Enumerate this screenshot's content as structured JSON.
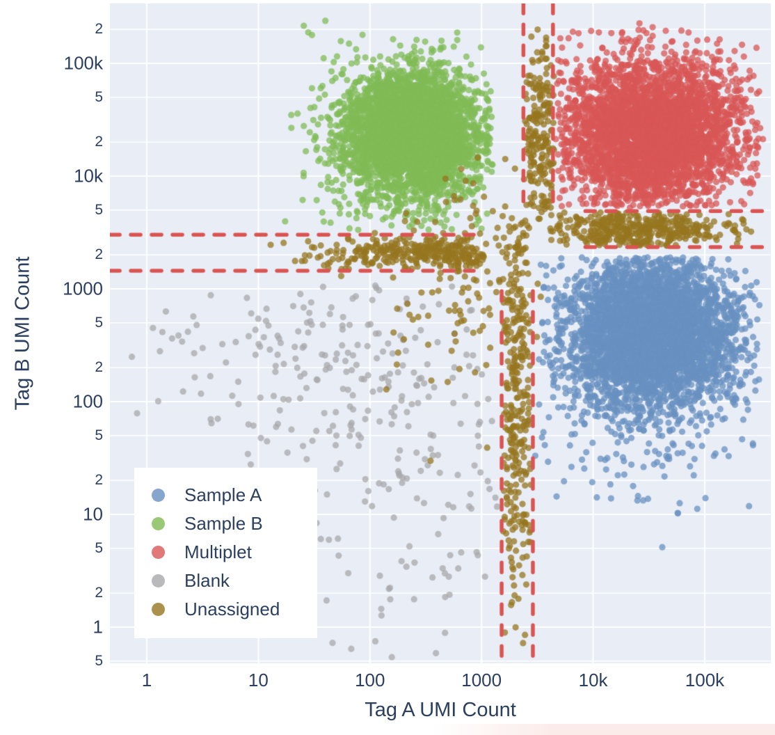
{
  "figure": {
    "background": "#ffffff",
    "plot_background": "#e8edf6",
    "grid_color": "#ffffff",
    "text_color": "#2b3f5e",
    "threshold_color": "#da5552"
  },
  "chart_data": {
    "type": "scatter",
    "title": "",
    "xlabel": "Tag A UMI Count",
    "ylabel": "Tag B UMI Count",
    "x_scale": "log",
    "y_scale": "log",
    "x_range_log": [
      -0.33,
      5.59
    ],
    "y_range_log": [
      -0.32,
      5.53
    ],
    "grid": true,
    "legend_position": "bottom-left",
    "marker": {
      "radius": 4.6,
      "opacity": 0.75
    },
    "x_ticks": [
      {
        "label": "1",
        "log": 0,
        "major": true
      },
      {
        "label": "10",
        "log": 1,
        "major": true
      },
      {
        "label": "100",
        "log": 2,
        "major": true
      },
      {
        "label": "1000",
        "log": 3,
        "major": true
      },
      {
        "label": "10k",
        "log": 4,
        "major": true
      },
      {
        "label": "100k",
        "log": 5,
        "major": true
      }
    ],
    "y_ticks": [
      {
        "label": "2",
        "log": 5.301,
        "major": false
      },
      {
        "label": "100k",
        "log": 5.0,
        "major": true
      },
      {
        "label": "5",
        "log": 4.699,
        "major": false
      },
      {
        "label": "2",
        "log": 4.301,
        "major": false
      },
      {
        "label": "10k",
        "log": 4.0,
        "major": true
      },
      {
        "label": "5",
        "log": 3.699,
        "major": false
      },
      {
        "label": "2",
        "log": 3.301,
        "major": false
      },
      {
        "label": "1000",
        "log": 3.0,
        "major": true
      },
      {
        "label": "5",
        "log": 2.699,
        "major": false
      },
      {
        "label": "2",
        "log": 2.301,
        "major": false
      },
      {
        "label": "100",
        "log": 2.0,
        "major": true
      },
      {
        "label": "5",
        "log": 1.699,
        "major": false
      },
      {
        "label": "2",
        "log": 1.301,
        "major": false
      },
      {
        "label": "10",
        "log": 1.0,
        "major": true
      },
      {
        "label": "5",
        "log": 0.699,
        "major": false
      },
      {
        "label": "2",
        "log": 0.301,
        "major": false
      },
      {
        "label": "1",
        "log": 0.0,
        "major": true
      },
      {
        "label": "5",
        "log": -0.301,
        "major": false
      }
    ],
    "x_gridlines_log": [
      0,
      1,
      2,
      3,
      4,
      5
    ],
    "series": [
      {
        "name": "Sample A",
        "color": "#6890c0",
        "clusters": [
          {
            "n": 3800,
            "cx": 4.52,
            "cy": 2.62,
            "sx": 0.38,
            "sy": 0.34,
            "clip_x": [
              3.5,
              5.5
            ],
            "clip_y": [
              1.0,
              3.28
            ]
          },
          {
            "n": 280,
            "cx": 4.35,
            "cy": 2.2,
            "sx": 0.5,
            "sy": 0.65,
            "clip_x": [
              3.47,
              5.5
            ],
            "clip_y": [
              0.6,
              3.28
            ]
          }
        ]
      },
      {
        "name": "Sample B",
        "color": "#80bb55",
        "clusters": [
          {
            "n": 3600,
            "cx": 2.38,
            "cy": 4.38,
            "sx": 0.3,
            "sy": 0.27,
            "clip_x": [
              1.0,
              3.1
            ],
            "clip_y": [
              3.55,
              5.45
            ]
          },
          {
            "n": 320,
            "cx": 2.35,
            "cy": 4.15,
            "sx": 0.5,
            "sy": 0.55,
            "clip_x": [
              1.05,
              3.05
            ],
            "clip_y": [
              3.5,
              5.4
            ]
          }
        ]
      },
      {
        "name": "Multiplet",
        "color": "#d85755",
        "clusters": [
          {
            "n": 3400,
            "cx": 4.52,
            "cy": 4.38,
            "sx": 0.4,
            "sy": 0.33,
            "clip_x": [
              3.68,
              5.5
            ],
            "clip_y": [
              3.73,
              5.35
            ]
          },
          {
            "n": 300,
            "cx": 4.45,
            "cy": 4.35,
            "sx": 0.6,
            "sy": 0.5,
            "clip_x": [
              3.66,
              5.55
            ],
            "clip_y": [
              3.72,
              5.4
            ]
          }
        ]
      },
      {
        "name": "Blank",
        "color": "#a8a8ab",
        "clusters": [
          {
            "n": 170,
            "cx": 1.55,
            "cy": 2.5,
            "sx": 0.78,
            "sy": 0.42,
            "clip_x": [
              -0.15,
              3.1
            ],
            "clip_y": [
              0.5,
              3.05
            ]
          },
          {
            "n": 130,
            "cx": 2.3,
            "cy": 1.25,
            "sx": 0.6,
            "sy": 0.8,
            "clip_x": [
              0.2,
              3.15
            ],
            "clip_y": [
              -0.31,
              2.6
            ]
          }
        ]
      },
      {
        "name": "Unassigned",
        "color": "#96761f",
        "clusters": [
          {
            "n": 300,
            "cx": 2.5,
            "cy": 3.32,
            "sx": 0.5,
            "sy": 0.085,
            "clip_x": [
              0.95,
              3.05
            ],
            "clip_y": [
              3.17,
              3.47
            ]
          },
          {
            "n": 300,
            "cx": 3.32,
            "cy": 2.1,
            "sx": 0.07,
            "sy": 1.1,
            "clip_x": [
              3.19,
              3.45
            ],
            "clip_y": [
              -0.25,
              3.6
            ]
          },
          {
            "n": 210,
            "cx": 3.52,
            "cy": 4.35,
            "sx": 0.09,
            "sy": 0.5,
            "clip_x": [
              3.39,
              3.65
            ],
            "clip_y": [
              3.6,
              5.3
            ]
          },
          {
            "n": 400,
            "cx": 4.4,
            "cy": 3.52,
            "sx": 0.42,
            "sy": 0.095,
            "clip_x": [
              3.6,
              5.45
            ],
            "clip_y": [
              3.38,
              3.68
            ]
          },
          {
            "n": 130,
            "cx": 3.0,
            "cy": 3.1,
            "sx": 0.45,
            "sy": 0.6,
            "clip_x": [
              1.5,
              3.6
            ],
            "clip_y": [
              0.5,
              4.2
            ]
          }
        ]
      }
    ],
    "threshold_lines": [
      {
        "orient": "v",
        "log": 3.375,
        "value": 2400,
        "span_log": [
          3.77,
          5.53
        ],
        "label": "tag-a-upper-threshold-left"
      },
      {
        "orient": "v",
        "log": 3.64,
        "value": 4400,
        "span_log": [
          3.77,
          5.53
        ],
        "label": "tag-a-upper-threshold-right"
      },
      {
        "orient": "v",
        "log": 3.18,
        "value": 1500,
        "span_log": [
          -0.32,
          2.98
        ],
        "label": "tag-a-lower-threshold-left"
      },
      {
        "orient": "v",
        "log": 3.46,
        "value": 2900,
        "span_log": [
          -0.32,
          2.98
        ],
        "label": "tag-a-lower-threshold-right"
      },
      {
        "orient": "h",
        "log": 3.48,
        "value": 3000,
        "span_log": [
          -0.33,
          2.93
        ],
        "label": "tag-b-left-threshold-upper"
      },
      {
        "orient": "h",
        "log": 3.16,
        "value": 1450,
        "span_log": [
          -0.33,
          2.93
        ],
        "label": "tag-b-left-threshold-lower"
      },
      {
        "orient": "h",
        "log": 3.69,
        "value": 4900,
        "span_log": [
          3.93,
          5.59
        ],
        "label": "tag-b-right-threshold-upper"
      },
      {
        "orient": "h",
        "log": 3.37,
        "value": 2350,
        "span_log": [
          3.93,
          5.59
        ],
        "label": "tag-b-right-threshold-lower"
      }
    ]
  }
}
